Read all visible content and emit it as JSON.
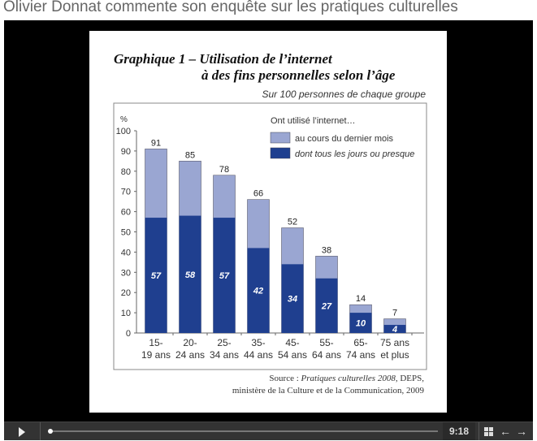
{
  "page": {
    "title": "Olivier Donnat commente son enquête sur les pratiques culturelles"
  },
  "player": {
    "time": "9:18",
    "progress": 0.0,
    "play_icon": "play-icon",
    "grid_icon": "grid-icon",
    "prev_icon": "arrow-left-icon",
    "next_icon": "arrow-right-icon"
  },
  "chart_data": {
    "type": "bar",
    "stacked": "overlay",
    "title_line1": "Graphique 1 – Utilisation de l’internet",
    "title_line2": "à des fins personnelles selon l’âge",
    "subtitle": "Sur 100 personnes de chaque groupe",
    "ylabel": "%",
    "ylim": [
      0,
      100
    ],
    "yticks": [
      0,
      10,
      20,
      30,
      40,
      50,
      60,
      70,
      80,
      90,
      100
    ],
    "categories": [
      [
        "15-",
        "19 ans"
      ],
      [
        "20-",
        "24 ans"
      ],
      [
        "25-",
        "34 ans"
      ],
      [
        "35-",
        "44 ans"
      ],
      [
        "45-",
        "54 ans"
      ],
      [
        "55-",
        "64 ans"
      ],
      [
        "65-",
        "74 ans"
      ],
      [
        "75 ans",
        "et plus"
      ]
    ],
    "legend_title": "Ont utilisé l’internet…",
    "series": [
      {
        "name": "au cours du dernier mois",
        "color": "#9aa6d2",
        "values": [
          91,
          85,
          78,
          66,
          52,
          38,
          14,
          7
        ]
      },
      {
        "name": "dont tous les jours ou presque",
        "color": "#1f3f8f",
        "values": [
          57,
          58,
          57,
          42,
          34,
          27,
          10,
          4
        ]
      }
    ],
    "source_line1_prefix": "Source : ",
    "source_line1_italic": "Pratiques culturelles 2008",
    "source_line1_suffix": ", DEPS,",
    "source_line2": "ministère de la Culture et de la Communication, 2009"
  }
}
